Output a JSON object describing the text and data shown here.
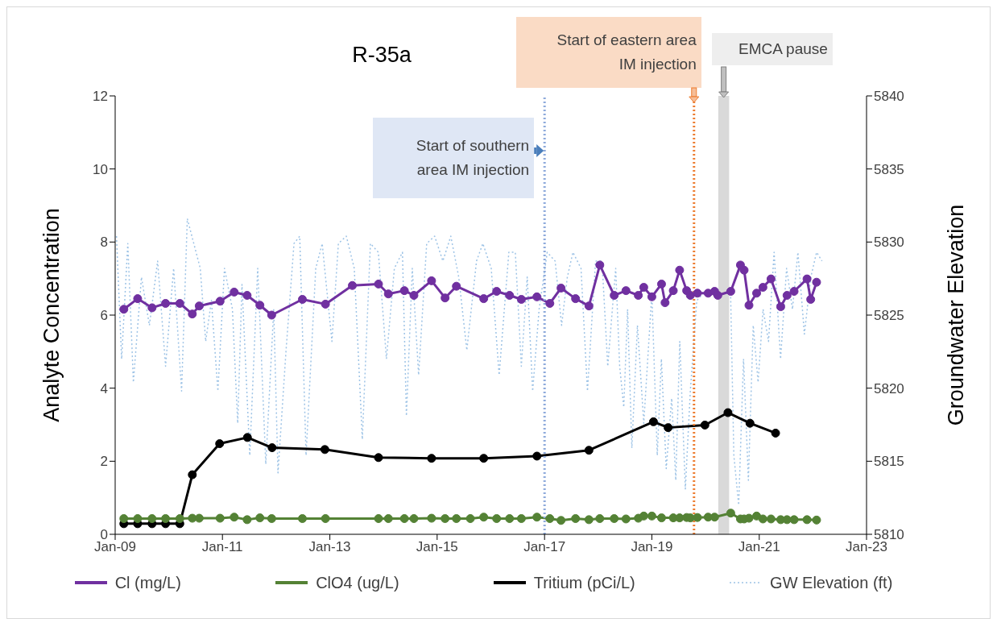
{
  "chart_data": {
    "type": "line",
    "title": "R-35a",
    "ylabel": "Analyte Concentration",
    "y2label": "Groundwater Elevation",
    "xlim": [
      "2009-01-01",
      "2023-01-01"
    ],
    "xticks": [
      {
        "value": "2009-01-01",
        "label": "Jan-09"
      },
      {
        "value": "2011-01-01",
        "label": "Jan-11"
      },
      {
        "value": "2013-01-01",
        "label": "Jan-13"
      },
      {
        "value": "2015-01-01",
        "label": "Jan-15"
      },
      {
        "value": "2017-01-01",
        "label": "Jan-17"
      },
      {
        "value": "2019-01-01",
        "label": "Jan-19"
      },
      {
        "value": "2021-01-01",
        "label": "Jan-21"
      },
      {
        "value": "2023-01-01",
        "label": "Jan-23"
      }
    ],
    "ylim": [
      0,
      12
    ],
    "yticks": [
      0,
      2,
      4,
      6,
      8,
      10,
      12
    ],
    "y2lim": [
      5810,
      5840
    ],
    "y2ticks": [
      5810,
      5815,
      5820,
      5825,
      5830,
      5835,
      5840
    ],
    "legend": "bottom",
    "series": [
      {
        "name": "Cl (mg/L)",
        "color": "#7030a0",
        "marker": "circle",
        "x": [
          "2009-03-01",
          "2009-06-03",
          "2009-09-09",
          "2009-12-10",
          "2010-03-17",
          "2010-06-10",
          "2010-07-27",
          "2010-12-16",
          "2011-03-22",
          "2011-06-18",
          "2011-09-13",
          "2011-12-02",
          "2012-06-28",
          "2012-12-02",
          "2013-06-03",
          "2013-11-28",
          "2014-02-03",
          "2014-05-23",
          "2014-07-27",
          "2014-11-24",
          "2015-02-24",
          "2015-05-12",
          "2015-11-14",
          "2016-02-10",
          "2016-05-08",
          "2016-07-27",
          "2016-11-10",
          "2017-02-06",
          "2017-04-23",
          "2017-07-31",
          "2017-10-30",
          "2018-01-12",
          "2018-04-20",
          "2018-07-09",
          "2018-10-01",
          "2018-11-07",
          "2019-01-01",
          "2019-03-08",
          "2019-04-01",
          "2019-05-27",
          "2019-07-09",
          "2019-08-26",
          "2019-09-20",
          "2019-11-07",
          "2020-01-19",
          "2020-03-03",
          "2020-03-25",
          "2020-06-21",
          "2020-08-26",
          "2020-09-20",
          "2020-10-23",
          "2020-12-14",
          "2021-01-26",
          "2021-03-22",
          "2021-05-27",
          "2021-07-09",
          "2021-08-26",
          "2021-11-22",
          "2021-12-17",
          "2022-01-26"
        ],
        "values": [
          6.16,
          6.45,
          6.2,
          6.32,
          6.32,
          6.03,
          6.25,
          6.38,
          6.63,
          6.54,
          6.27,
          6.0,
          6.43,
          6.3,
          6.81,
          6.85,
          6.58,
          6.67,
          6.54,
          6.94,
          6.47,
          6.79,
          6.45,
          6.65,
          6.54,
          6.43,
          6.5,
          6.32,
          6.74,
          6.45,
          6.25,
          7.37,
          6.54,
          6.67,
          6.54,
          6.76,
          6.5,
          6.85,
          6.34,
          6.67,
          7.23,
          6.67,
          6.54,
          6.6,
          6.6,
          6.65,
          6.54,
          6.65,
          7.37,
          7.23,
          6.27,
          6.6,
          6.76,
          6.99,
          6.23,
          6.54,
          6.65,
          6.99,
          6.43,
          6.9
        ]
      },
      {
        "name": "ClO4 (ug/L)",
        "color": "#548235",
        "marker": "circle",
        "x": [
          "2009-03-01",
          "2009-06-03",
          "2009-09-09",
          "2009-12-10",
          "2010-03-17",
          "2010-06-10",
          "2010-07-27",
          "2010-12-16",
          "2011-03-22",
          "2011-06-18",
          "2011-09-13",
          "2011-12-02",
          "2012-06-28",
          "2012-12-02",
          "2013-11-28",
          "2014-02-03",
          "2014-05-23",
          "2014-07-27",
          "2014-11-24",
          "2015-02-24",
          "2015-05-12",
          "2015-08-15",
          "2015-11-14",
          "2016-02-10",
          "2016-05-08",
          "2016-07-27",
          "2016-11-10",
          "2017-02-06",
          "2017-04-23",
          "2017-07-31",
          "2017-10-30",
          "2018-01-12",
          "2018-04-20",
          "2018-07-09",
          "2018-10-01",
          "2018-11-07",
          "2019-01-01",
          "2019-03-08",
          "2019-05-27",
          "2019-07-09",
          "2019-08-26",
          "2019-09-20",
          "2019-11-07",
          "2020-01-19",
          "2020-03-03",
          "2020-06-21",
          "2020-08-26",
          "2020-09-20",
          "2020-10-23",
          "2020-12-14",
          "2021-01-26",
          "2021-03-22",
          "2021-05-27",
          "2021-07-09",
          "2021-08-26",
          "2021-11-22",
          "2022-01-26"
        ],
        "values": [
          0.43,
          0.43,
          0.43,
          0.43,
          0.43,
          0.44,
          0.44,
          0.44,
          0.47,
          0.4,
          0.45,
          0.43,
          0.43,
          0.43,
          0.43,
          0.43,
          0.43,
          0.43,
          0.44,
          0.43,
          0.43,
          0.43,
          0.47,
          0.43,
          0.43,
          0.43,
          0.47,
          0.43,
          0.38,
          0.43,
          0.4,
          0.43,
          0.43,
          0.42,
          0.44,
          0.5,
          0.5,
          0.45,
          0.45,
          0.45,
          0.46,
          0.45,
          0.46,
          0.47,
          0.47,
          0.58,
          0.42,
          0.42,
          0.44,
          0.5,
          0.42,
          0.42,
          0.4,
          0.4,
          0.4,
          0.4,
          0.39
        ]
      },
      {
        "name": "Tritium (pCi/L)",
        "color": "#000000",
        "marker": "circle",
        "x": [
          "2009-03-01",
          "2009-06-03",
          "2009-09-09",
          "2009-12-10",
          "2010-03-17",
          "2010-06-10",
          "2010-12-13",
          "2011-06-20",
          "2011-12-05",
          "2012-11-28",
          "2013-11-28",
          "2014-11-24",
          "2015-11-14",
          "2016-11-10",
          "2017-10-30",
          "2019-01-12",
          "2019-04-22",
          "2019-12-28",
          "2020-06-02",
          "2020-10-30",
          "2021-04-22"
        ],
        "values": [
          0.29,
          0.29,
          0.29,
          0.29,
          0.29,
          1.63,
          2.48,
          2.65,
          2.37,
          2.32,
          2.1,
          2.08,
          2.08,
          2.14,
          2.3,
          3.08,
          2.92,
          2.99,
          3.33,
          3.04,
          2.77
        ]
      },
      {
        "name": "GW Elevation (ft)",
        "color": "#9dc3e6",
        "axis": "y2",
        "marker": "none",
        "line_style": "dotted",
        "x": [
          "2009-01-10",
          "2009-02-14",
          "2009-03-28",
          "2009-05-05",
          "2009-06-29",
          "2009-08-22",
          "2009-10-17",
          "2009-12-10",
          "2010-02-03",
          "2010-03-29",
          "2010-05-07",
          "2010-06-20",
          "2010-08-03",
          "2010-09-09",
          "2010-10-18",
          "2010-12-01",
          "2011-01-15",
          "2011-03-10",
          "2011-04-15",
          "2011-05-14",
          "2011-07-06",
          "2011-08-29",
          "2011-10-23",
          "2011-12-16",
          "2012-01-14",
          "2012-03-09",
          "2012-05-02",
          "2012-06-10",
          "2012-07-23",
          "2012-09-27",
          "2012-11-10",
          "2012-12-24",
          "2013-01-15",
          "2013-02-28",
          "2013-04-23",
          "2013-06-16",
          "2013-08-10",
          "2013-10-04",
          "2013-11-27",
          "2014-01-21",
          "2014-03-16",
          "2014-05-10",
          "2014-06-06",
          "2014-07-16",
          "2014-08-28",
          "2014-10-22",
          "2014-12-15",
          "2015-02-09",
          "2015-04-04",
          "2015-05-28",
          "2015-07-22",
          "2015-09-26",
          "2015-11-08",
          "2016-01-04",
          "2016-02-27",
          "2016-05-03",
          "2016-06-16",
          "2016-07-27",
          "2016-09-05",
          "2016-10-12",
          "2016-11-25",
          "2017-01-19",
          "2017-03-14",
          "2017-04-27",
          "2017-06-05",
          "2017-07-13",
          "2017-09-06",
          "2017-10-20",
          "2017-12-14",
          "2018-01-27",
          "2018-03-07",
          "2018-04-30",
          "2018-05-27",
          "2018-06-24",
          "2018-07-20",
          "2018-08-18",
          "2018-09-25",
          "2018-11-07",
          "2019-01-01",
          "2019-02-07",
          "2019-03-07",
          "2019-04-09",
          "2019-05-16",
          "2019-06-13",
          "2019-07-10",
          "2019-08-17",
          "2019-09-20",
          "2019-11-03",
          "2019-12-20",
          "2020-06-20",
          "2020-07-12",
          "2020-08-14",
          "2020-09-16",
          "2020-10-19",
          "2020-11-21",
          "2020-12-24",
          "2021-01-27",
          "2021-03-05",
          "2021-04-12",
          "2021-05-26",
          "2021-07-06",
          "2021-08-15",
          "2021-09-21",
          "2021-11-04",
          "2021-12-18",
          "2022-01-26",
          "2022-03-04"
        ],
        "values": [
          5830.4,
          5822.0,
          5829.9,
          5820.4,
          5827.6,
          5824.3,
          5828.7,
          5821.5,
          5828.2,
          5819.8,
          5831.6,
          5829.9,
          5828.2,
          5823.2,
          5826.0,
          5819.8,
          5828.2,
          5825.4,
          5817.6,
          5827.1,
          5815.4,
          5828.2,
          5814.8,
          5825.4,
          5814.2,
          5822.6,
          5829.9,
          5830.4,
          5815.4,
          5828.2,
          5829.9,
          5825.4,
          5823.2,
          5829.9,
          5830.4,
          5828.2,
          5816.5,
          5829.9,
          5829.3,
          5822.0,
          5828.2,
          5829.3,
          5818.1,
          5828.2,
          5820.9,
          5829.9,
          5830.4,
          5828.7,
          5830.4,
          5827.6,
          5822.6,
          5828.7,
          5829.9,
          5828.2,
          5820.9,
          5829.3,
          5829.3,
          5821.5,
          5827.6,
          5819.8,
          5825.4,
          5829.3,
          5828.7,
          5824.3,
          5827.6,
          5829.3,
          5828.2,
          5819.8,
          5828.7,
          5828.7,
          5821.5,
          5828.2,
          5821.5,
          5818.7,
          5825.4,
          5815.9,
          5824.3,
          5817.6,
          5826.5,
          5815.4,
          5822.0,
          5814.5,
          5819.3,
          5813.7,
          5823.2,
          5813.1,
          5819.8,
          5826.0,
          5826.5,
          5826.5,
          5815.4,
          5812.0,
          5822.0,
          5813.7,
          5824.3,
          5820.4,
          5825.4,
          5823.2,
          5829.3,
          5822.0,
          5828.2,
          5825.4,
          5829.3,
          5823.7,
          5827.6,
          5829.3,
          5828.7
        ]
      }
    ],
    "ref_lines": [
      {
        "axis": "x",
        "value": "2017-01-01",
        "label": "Start of southern area IM injection",
        "color": "#8eaadb",
        "line_style": "dotted"
      },
      {
        "axis": "x",
        "value": "2019-10-15",
        "label": "Start of eastern area IM injection",
        "color": "#ed7d31",
        "line_style": "dotted"
      }
    ],
    "bands": [
      {
        "axis": "x",
        "from": "2020-03-28",
        "to": "2020-06-10",
        "label": "EMCA pause",
        "color": "#d9d9d9"
      }
    ]
  }
}
